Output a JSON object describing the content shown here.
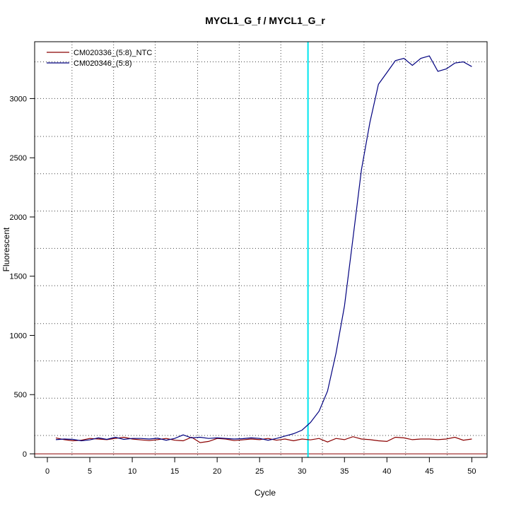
{
  "chart_data": {
    "type": "line",
    "title": "MYCL1_G_f / MYCL1_G_r",
    "xlabel": "Cycle",
    "ylabel": "Fluorescent",
    "xlim": [
      -1.5,
      51.8
    ],
    "ylim": [
      -30,
      3480
    ],
    "x_ticks": [
      0,
      5,
      10,
      15,
      20,
      25,
      30,
      35,
      40,
      45,
      50
    ],
    "y_ticks": [
      0,
      500,
      1000,
      1500,
      2000,
      2500,
      3000
    ],
    "grid_x": [
      2.9,
      7.8,
      12.7,
      17.7,
      22.6,
      27.5,
      32.4,
      37.3,
      42.2,
      47.1
    ],
    "grid_y": [
      155,
      470,
      785,
      1100,
      1420,
      1735,
      2050,
      2365,
      2680,
      3000,
      3310
    ],
    "threshold_x": 30.7,
    "baseline_y": 0,
    "colors": {
      "threshold": "#00e5ee",
      "baseline": "#8b0000",
      "ntc": "#8b0000",
      "sample": "#00007f"
    },
    "legend_position": "top-left",
    "series": [
      {
        "name": "CM020336_(5:8)_NTC",
        "color": "#8b0000",
        "x": [
          1,
          2,
          3,
          4,
          5,
          6,
          7,
          8,
          9,
          10,
          11,
          12,
          13,
          14,
          15,
          16,
          17,
          18,
          19,
          20,
          21,
          22,
          23,
          24,
          25,
          26,
          27,
          28,
          29,
          30,
          31,
          32,
          33,
          34,
          35,
          36,
          37,
          38,
          39,
          40,
          41,
          42,
          43,
          44,
          45,
          46,
          47,
          48,
          49,
          50
        ],
        "values": [
          135,
          120,
          110,
          115,
          130,
          125,
          120,
          130,
          140,
          125,
          118,
          112,
          120,
          130,
          115,
          110,
          140,
          95,
          105,
          130,
          125,
          112,
          118,
          125,
          120,
          130,
          115,
          125,
          110,
          125,
          118,
          130,
          100,
          130,
          120,
          145,
          125,
          120,
          110,
          105,
          140,
          135,
          120,
          125,
          125,
          120,
          125,
          140,
          115,
          125
        ]
      },
      {
        "name": "CM020346_(5:8)",
        "color": "#00007f",
        "x": [
          1,
          2,
          3,
          4,
          5,
          6,
          7,
          8,
          9,
          10,
          11,
          12,
          13,
          14,
          15,
          16,
          17,
          18,
          19,
          20,
          21,
          22,
          23,
          24,
          25,
          26,
          27,
          28,
          29,
          30,
          31,
          32,
          33,
          34,
          35,
          36,
          37,
          38,
          39,
          40,
          41,
          42,
          43,
          44,
          45,
          46,
          47,
          48,
          49,
          50
        ],
        "values": [
          120,
          125,
          122,
          110,
          118,
          135,
          122,
          140,
          122,
          130,
          130,
          125,
          132,
          115,
          130,
          160,
          135,
          140,
          130,
          135,
          130,
          125,
          128,
          135,
          130,
          115,
          130,
          150,
          170,
          200,
          265,
          360,
          530,
          850,
          1250,
          1820,
          2400,
          2800,
          3120,
          3220,
          3320,
          3340,
          3280,
          3340,
          3360,
          3230,
          3250,
          3300,
          3310,
          3270
        ]
      }
    ]
  }
}
